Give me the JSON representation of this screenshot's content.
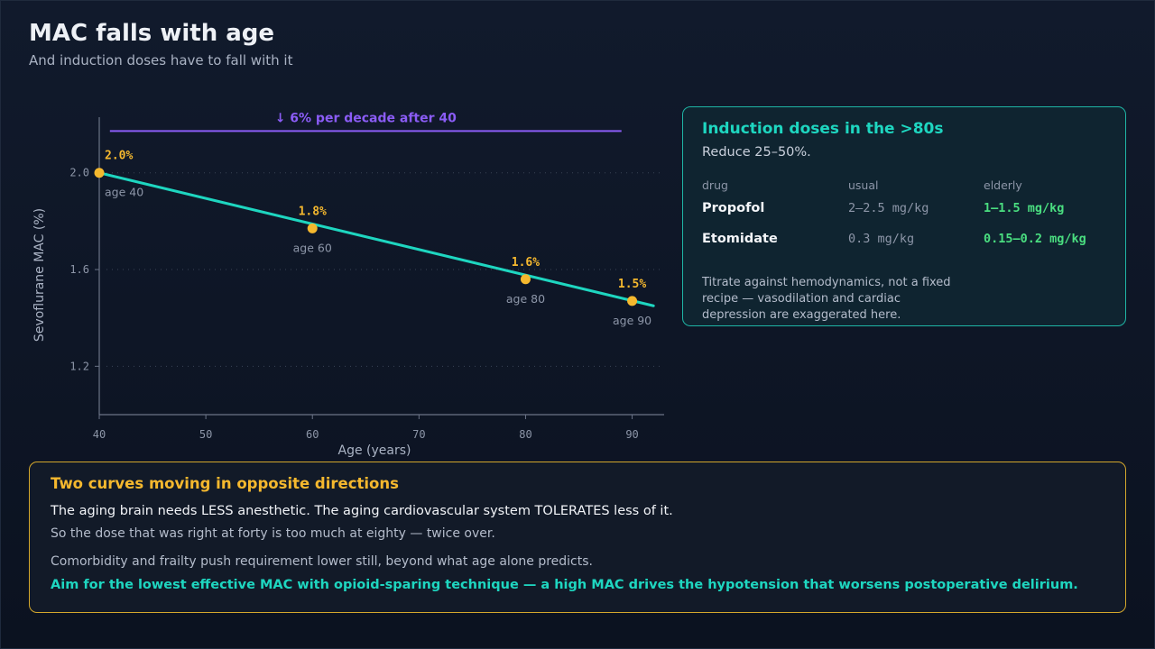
{
  "header": {
    "title": "MAC falls with age",
    "subtitle": "And induction doses have to fall with it"
  },
  "chart_data": {
    "type": "line",
    "xlabel": "Age (years)",
    "ylabel": "Sevoflurane MAC (%)",
    "xlim": [
      40,
      93
    ],
    "ylim": [
      1.0,
      2.23
    ],
    "x_ticks": [
      40,
      50,
      60,
      70,
      80,
      90
    ],
    "y_ticks": [
      1.2,
      1.6,
      2.0
    ],
    "y_tick_labels": [
      "1.2",
      "1.6",
      "2.0"
    ],
    "grid": "horizontal dotted",
    "line": {
      "x": [
        40,
        92
      ],
      "y": [
        2.0,
        1.45
      ]
    },
    "points": [
      {
        "x": 40,
        "y": 2.0,
        "value_label": "2.0%",
        "label": "age 40"
      },
      {
        "x": 60,
        "y": 1.77,
        "value_label": "1.8%",
        "label": "age 60"
      },
      {
        "x": 80,
        "y": 1.56,
        "value_label": "1.6%",
        "label": "age 80"
      },
      {
        "x": 90,
        "y": 1.47,
        "value_label": "1.5%",
        "label": "age 90"
      }
    ],
    "annotation": {
      "text": "↓ 6% per decade after 40",
      "x_from": 41,
      "x_to": 89,
      "y": 2.18
    },
    "colors": {
      "line": "#1ed6c0",
      "points": "#f5b82e",
      "annotation": "#8b5cf6"
    }
  },
  "dose_card": {
    "title": "Induction doses in the >80s",
    "subtitle": "Reduce 25–50%.",
    "headers": [
      "drug",
      "usual",
      "elderly"
    ],
    "rows": [
      {
        "drug": "Propofol",
        "usual": "2–2.5 mg/kg",
        "elderly": "1–1.5 mg/kg"
      },
      {
        "drug": "Etomidate",
        "usual": "0.3 mg/kg",
        "elderly": "0.15–0.2 mg/kg"
      }
    ],
    "note": "Titrate against hemodynamics, not a fixed recipe — vasodilation and cardiac depression are exaggerated here."
  },
  "opposite_card": {
    "title": "Two curves moving in opposite directions",
    "line1": "The aging brain needs LESS anesthetic. The aging cardiovascular system TOLERATES less of it.",
    "line2": "So the dose that was right at forty is too much at eighty — twice over.",
    "line3": "Comorbidity and frailty push requirement lower still, beyond what age alone predicts.",
    "line4": "Aim for the lowest effective MAC with opioid-sparing technique — a high MAC drives the hypotension that worsens postoperative delirium."
  }
}
